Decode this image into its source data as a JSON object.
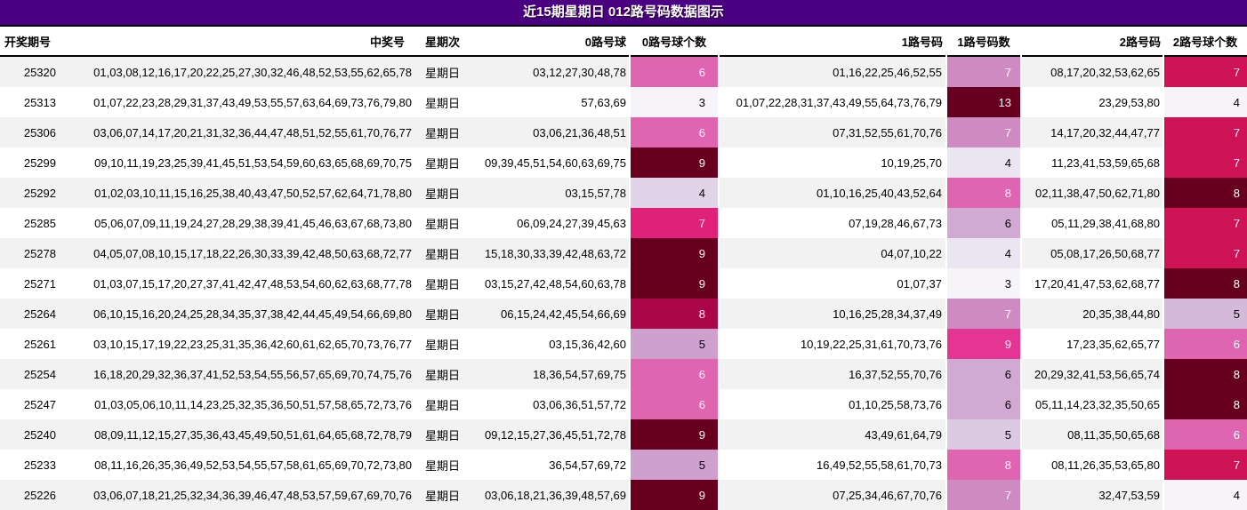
{
  "title": "近15期星期日 012路号码数据图示",
  "colors": {
    "title_bg": "#4B0082",
    "title_text": "#ffffff",
    "row_stripe": "#f2f2f2",
    "row_base": "#ffffff",
    "header_text": "#000000",
    "divider": "#000000"
  },
  "heatmap": {
    "palette_name": "PuRd",
    "stops": [
      "#f7f4f9",
      "#e7e1ef",
      "#d4b9da",
      "#c994c7",
      "#df65b0",
      "#e7298a",
      "#ce1256",
      "#980043",
      "#67001f"
    ],
    "white_text_threshold": 0.38,
    "normalization": "per-column min-max"
  },
  "table": {
    "headers": [
      "开奖期号",
      "中奖号",
      "星期次",
      "0路号球",
      "0路号球个数",
      "1路号码",
      "1路号码数",
      "2路号码",
      "2路号球个数"
    ],
    "rows": [
      {
        "period": "25320",
        "winning": "01,03,08,12,16,17,20,22,25,27,30,32,46,48,52,53,55,62,65,78",
        "weekday": "星期日",
        "r0": "03,12,27,30,48,78",
        "r0_count": 6,
        "r1": "01,16,22,25,46,52,55",
        "r1_count": 7,
        "r2": "08,17,20,32,53,62,65",
        "r2_count": 7
      },
      {
        "period": "25313",
        "winning": "01,07,22,23,28,29,31,37,43,49,53,55,57,63,64,69,73,76,79,80",
        "weekday": "星期日",
        "r0": "57,63,69",
        "r0_count": 3,
        "r1": "01,07,22,28,31,37,43,49,55,64,73,76,79",
        "r1_count": 13,
        "r2": "23,29,53,80",
        "r2_count": 4
      },
      {
        "period": "25306",
        "winning": "03,06,07,14,17,20,21,31,32,36,44,47,48,51,52,55,61,70,76,77",
        "weekday": "星期日",
        "r0": "03,06,21,36,48,51",
        "r0_count": 6,
        "r1": "07,31,52,55,61,70,76",
        "r1_count": 7,
        "r2": "14,17,20,32,44,47,77",
        "r2_count": 7
      },
      {
        "period": "25299",
        "winning": "09,10,11,19,23,25,39,41,45,51,53,54,59,60,63,65,68,69,70,75",
        "weekday": "星期日",
        "r0": "09,39,45,51,54,60,63,69,75",
        "r0_count": 9,
        "r1": "10,19,25,70",
        "r1_count": 4,
        "r2": "11,23,41,53,59,65,68",
        "r2_count": 7
      },
      {
        "period": "25292",
        "winning": "01,02,03,10,11,15,16,25,38,40,43,47,50,52,57,62,64,71,78,80",
        "weekday": "星期日",
        "r0": "03,15,57,78",
        "r0_count": 4,
        "r1": "01,10,16,25,40,43,52,64",
        "r1_count": 8,
        "r2": "02,11,38,47,50,62,71,80",
        "r2_count": 8
      },
      {
        "period": "25285",
        "winning": "05,06,07,09,11,19,24,27,28,29,38,39,41,45,46,63,67,68,73,80",
        "weekday": "星期日",
        "r0": "06,09,24,27,39,45,63",
        "r0_count": 7,
        "r1": "07,19,28,46,67,73",
        "r1_count": 6,
        "r2": "05,11,29,38,41,68,80",
        "r2_count": 7
      },
      {
        "period": "25278",
        "winning": "04,05,07,08,10,15,17,18,22,26,30,33,39,42,48,50,63,68,72,77",
        "weekday": "星期日",
        "r0": "15,18,30,33,39,42,48,63,72",
        "r0_count": 9,
        "r1": "04,07,10,22",
        "r1_count": 4,
        "r2": "05,08,17,26,50,68,77",
        "r2_count": 7
      },
      {
        "period": "25271",
        "winning": "01,03,07,15,17,20,27,37,41,42,47,48,53,54,60,62,63,68,77,78",
        "weekday": "星期日",
        "r0": "03,15,27,42,48,54,60,63,78",
        "r0_count": 9,
        "r1": "01,07,37",
        "r1_count": 3,
        "r2": "17,20,41,47,53,62,68,77",
        "r2_count": 8
      },
      {
        "period": "25264",
        "winning": "06,10,15,16,20,24,25,28,34,35,37,38,42,44,45,49,54,66,69,80",
        "weekday": "星期日",
        "r0": "06,15,24,42,45,54,66,69",
        "r0_count": 8,
        "r1": "10,16,25,28,34,37,49",
        "r1_count": 7,
        "r2": "20,35,38,44,80",
        "r2_count": 5
      },
      {
        "period": "25261",
        "winning": "03,10,15,17,19,22,23,25,31,35,36,42,60,61,62,65,70,73,76,77",
        "weekday": "星期日",
        "r0": "03,15,36,42,60",
        "r0_count": 5,
        "r1": "10,19,22,25,31,61,70,73,76",
        "r1_count": 9,
        "r2": "17,23,35,62,65,77",
        "r2_count": 6
      },
      {
        "period": "25254",
        "winning": "16,18,20,29,32,36,37,41,52,53,54,55,56,57,65,69,70,74,75,76",
        "weekday": "星期日",
        "r0": "18,36,54,57,69,75",
        "r0_count": 6,
        "r1": "16,37,52,55,70,76",
        "r1_count": 6,
        "r2": "20,29,32,41,53,56,65,74",
        "r2_count": 8
      },
      {
        "period": "25247",
        "winning": "01,03,05,06,10,11,14,23,25,32,35,36,50,51,57,58,65,72,73,76",
        "weekday": "星期日",
        "r0": "03,06,36,51,57,72",
        "r0_count": 6,
        "r1": "01,10,25,58,73,76",
        "r1_count": 6,
        "r2": "05,11,14,23,32,35,50,65",
        "r2_count": 8
      },
      {
        "period": "25240",
        "winning": "08,09,11,12,15,27,35,36,43,45,49,50,51,61,64,65,68,72,78,79",
        "weekday": "星期日",
        "r0": "09,12,15,27,36,45,51,72,78",
        "r0_count": 9,
        "r1": "43,49,61,64,79",
        "r1_count": 5,
        "r2": "08,11,35,50,65,68",
        "r2_count": 6
      },
      {
        "period": "25233",
        "winning": "08,11,16,26,35,36,49,52,53,54,55,57,58,61,65,69,70,72,73,80",
        "weekday": "星期日",
        "r0": "36,54,57,69,72",
        "r0_count": 5,
        "r1": "16,49,52,55,58,61,70,73",
        "r1_count": 8,
        "r2": "08,11,26,35,53,65,80",
        "r2_count": 7
      },
      {
        "period": "25226",
        "winning": "03,06,07,18,21,25,32,34,36,39,46,47,48,53,57,59,67,69,70,76",
        "weekday": "星期日",
        "r0": "03,06,18,21,36,39,48,57,69",
        "r0_count": 9,
        "r1": "07,25,34,46,67,70,76",
        "r1_count": 7,
        "r2": "32,47,53,59",
        "r2_count": 4
      }
    ]
  },
  "chart_data": {
    "type": "heatmap",
    "title": "近15期星期日 012路号码数据图示",
    "rows": [
      "25320",
      "25313",
      "25306",
      "25299",
      "25292",
      "25285",
      "25278",
      "25271",
      "25264",
      "25261",
      "25254",
      "25247",
      "25240",
      "25233",
      "25226"
    ],
    "columns": [
      "0路号球个数",
      "1路号码数",
      "2路号球个数"
    ],
    "values": [
      [
        6,
        7,
        7
      ],
      [
        3,
        13,
        4
      ],
      [
        6,
        7,
        7
      ],
      [
        9,
        4,
        7
      ],
      [
        4,
        8,
        8
      ],
      [
        7,
        6,
        7
      ],
      [
        9,
        4,
        7
      ],
      [
        9,
        3,
        8
      ],
      [
        8,
        7,
        5
      ],
      [
        5,
        9,
        6
      ],
      [
        6,
        6,
        8
      ],
      [
        6,
        6,
        8
      ],
      [
        9,
        5,
        6
      ],
      [
        5,
        8,
        7
      ],
      [
        9,
        7,
        4
      ]
    ],
    "column_scales": [
      {
        "min": 3,
        "max": 9
      },
      {
        "min": 3,
        "max": 13
      },
      {
        "min": 4,
        "max": 8
      }
    ],
    "palette": [
      "#f7f4f9",
      "#e7e1ef",
      "#d4b9da",
      "#c994c7",
      "#df65b0",
      "#e7298a",
      "#ce1256",
      "#980043",
      "#67001f"
    ],
    "legend_position": "none",
    "grid": false
  }
}
